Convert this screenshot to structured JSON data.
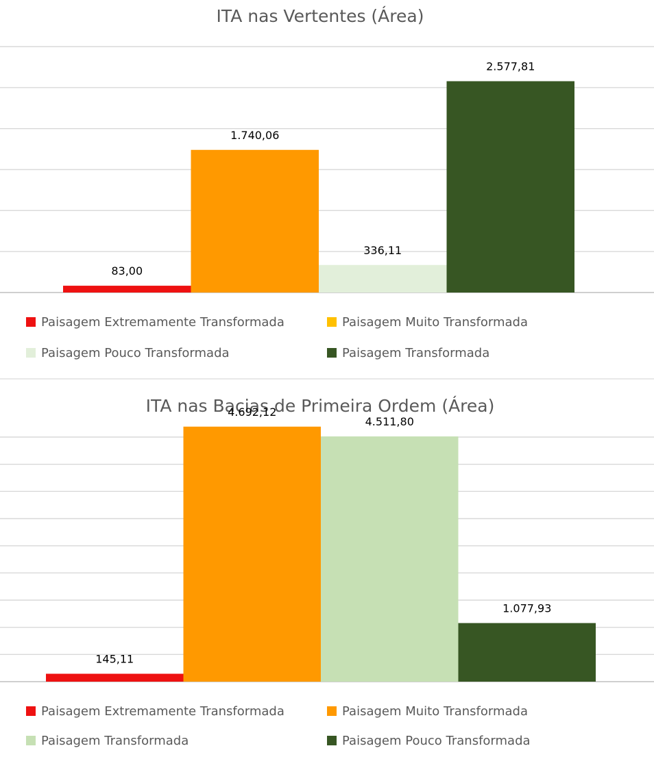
{
  "chart_data": [
    {
      "type": "bar",
      "title": "ITA nas Vertentes (Área)",
      "categories": [
        "Paisagem Extremamente Transformada",
        "Paisagem Muito Transformada",
        "Paisagem Pouco Transformada",
        "Paisagem Transformada"
      ],
      "values": [
        83.0,
        1740.06,
        336.11,
        2577.81
      ],
      "value_labels": [
        "83,00",
        "1.740,06",
        "336,11",
        "2.577,81"
      ],
      "colors": [
        "#ee1111",
        "#ff9900",
        "#e2efda",
        "#375623"
      ],
      "legend_colors": [
        "#ee1111",
        "#ffc000",
        "#e2efda",
        "#375623"
      ],
      "ylim": [
        0,
        3000
      ],
      "grid": true,
      "legend_position": "bottom"
    },
    {
      "type": "bar",
      "title": "ITA nas Bacias de Primeira Ordem (Área)",
      "categories": [
        "Paisagem Extremamente Transformada",
        "Paisagem Muito Transformada",
        "Paisagem Transformada",
        "Paisagem Pouco Transformada"
      ],
      "values": [
        145.11,
        4692.12,
        4511.8,
        1077.93
      ],
      "value_labels": [
        "145,11",
        "4.692,12",
        "4.511,80",
        "1.077,93"
      ],
      "colors": [
        "#ee1111",
        "#ff9900",
        "#c6e0b4",
        "#375623"
      ],
      "legend_colors": [
        "#ee1111",
        "#ff9900",
        "#c6e0b4",
        "#375623"
      ],
      "ylim": [
        0,
        4500
      ],
      "grid": true,
      "legend_position": "bottom"
    }
  ]
}
